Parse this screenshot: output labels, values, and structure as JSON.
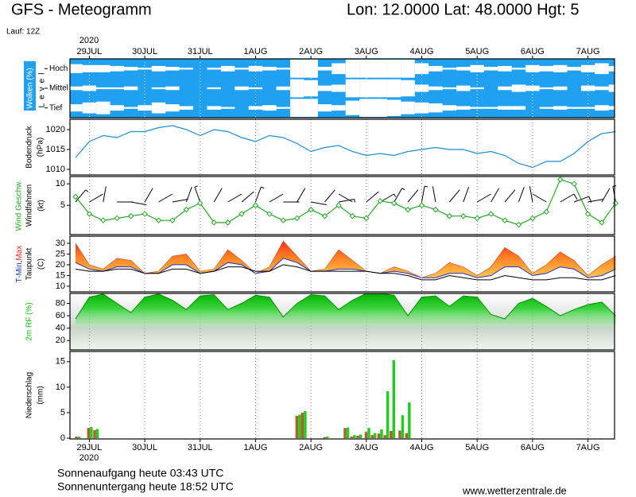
{
  "chart_data": {
    "type": "meteogram",
    "title": "GFS - Meteogramm",
    "location": "Lon: 12.0000 Lat: 48.0000 Hgt: 5",
    "run": "Lauf: 12Z",
    "year": "2020",
    "xlim": [
      -0.35,
      9.48
    ],
    "xticks": [
      {
        "value": 0,
        "label": "29JUL"
      },
      {
        "value": 1,
        "label": "30JUL"
      },
      {
        "value": 2,
        "label": "31JUL"
      },
      {
        "value": 3,
        "label": "1AUG"
      },
      {
        "value": 4,
        "label": "2AUG"
      },
      {
        "value": 5,
        "label": "3AUG"
      },
      {
        "value": 6,
        "label": "4AUG"
      },
      {
        "value": 7,
        "label": "5AUG"
      },
      {
        "value": 8,
        "label": "6AUG"
      },
      {
        "value": 9,
        "label": "7AUG"
      }
    ],
    "x": [
      -0.25,
      0,
      0.25,
      0.5,
      0.75,
      1,
      1.25,
      1.5,
      1.75,
      2,
      2.25,
      2.5,
      2.75,
      3,
      3.25,
      3.5,
      3.75,
      4,
      4.25,
      4.5,
      4.75,
      5,
      5.25,
      5.5,
      5.75,
      6,
      6.25,
      6.5,
      6.75,
      7,
      7.25,
      7.5,
      7.75,
      8,
      8.25,
      8.5,
      8.75,
      9,
      9.25,
      9.5
    ],
    "panels": [
      {
        "type": "cloud",
        "ylabel": "Wolken (%)",
        "ylabel2": "Level",
        "ylim": [
          0,
          100
        ],
        "color": "#20a0f0",
        "series": [
          {
            "name": "Hoch",
            "color": "#ffffff",
            "values": [
              50,
              40,
              40,
              30,
              20,
              10,
              30,
              20,
              10,
              0,
              10,
              30,
              10,
              30,
              20,
              10,
              100,
              100,
              20,
              60,
              100,
              100,
              100,
              100,
              100,
              60,
              30,
              10,
              20,
              40,
              20,
              30,
              10,
              40,
              30,
              40,
              20,
              40,
              60,
              30
            ]
          },
          {
            "name": "Mittel",
            "color": "#ffffff",
            "values": [
              20,
              30,
              10,
              10,
              20,
              0,
              10,
              20,
              0,
              0,
              10,
              0,
              20,
              10,
              0,
              20,
              100,
              90,
              30,
              40,
              100,
              100,
              100,
              100,
              90,
              40,
              20,
              10,
              30,
              10,
              0,
              20,
              40,
              30,
              10,
              20,
              0,
              30,
              20,
              40
            ]
          },
          {
            "name": "Tief",
            "color": "#ffffff",
            "values": [
              40,
              60,
              70,
              30,
              10,
              30,
              60,
              40,
              20,
              0,
              20,
              10,
              0,
              20,
              30,
              10,
              100,
              100,
              40,
              30,
              80,
              100,
              100,
              90,
              70,
              60,
              50,
              30,
              20,
              10,
              10,
              20,
              20,
              0,
              10,
              20,
              10,
              10,
              30,
              20
            ]
          }
        ]
      },
      {
        "type": "line",
        "ylabel": "Bodendruck",
        "ylabel2": "(hPa)",
        "ylim": [
          1008.6,
          1022.6
        ],
        "yticks": [
          1010,
          1015,
          1020
        ],
        "series": [
          {
            "color": "#1b8fd8",
            "values": [
              1013,
              1017,
              1018.5,
              1018,
              1019.5,
              1019.5,
              1020.5,
              1021,
              1020,
              1018.5,
              1020,
              1019.5,
              1018,
              1017,
              1018.5,
              1018,
              1016.5,
              1014.5,
              1015.5,
              1016,
              1014.5,
              1013.5,
              1014,
              1013.5,
              1014.5,
              1015,
              1015.5,
              1015,
              1015,
              1014,
              1014.5,
              1013.5,
              1011.5,
              1010.5,
              1012,
              1012,
              1014,
              1017,
              1019,
              1019.5
            ]
          }
        ]
      },
      {
        "type": "wind",
        "ylabel": "(kt)",
        "ylim": [
          -1.8,
          11.7
        ],
        "yticks": [
          5,
          10
        ],
        "series": [
          {
            "name": "Wind Geschw.",
            "color": "#22aa22",
            "values": [
              7,
              3,
              1.5,
              2,
              2.5,
              3,
              1.5,
              1.5,
              4,
              5.5,
              1,
              1,
              3,
              5,
              3,
              1.5,
              2,
              4,
              2.5,
              5,
              2.5,
              2,
              6,
              5.5,
              4,
              5,
              4,
              2.5,
              2.5,
              2,
              3,
              1.5,
              0.5,
              2,
              3.5,
              11,
              10,
              3,
              1,
              5.5
            ]
          }
        ],
        "barbs": {
          "name": "Windfahnen",
          "color": "#000000",
          "values": [
            40,
            60,
            10,
            90,
            100,
            30,
            60,
            80,
            20,
            340,
            30,
            60,
            50,
            20,
            60,
            90,
            30,
            100,
            40,
            80,
            300,
            50,
            60,
            30,
            40,
            10,
            350,
            40,
            20,
            60,
            30,
            40,
            20,
            350,
            300,
            60,
            70,
            80,
            30,
            350
          ]
        }
      },
      {
        "type": "temperature",
        "ylabel": "(C)",
        "name_separator": ",",
        "ylim": [
          7.4,
          33.3
        ],
        "yticks": [
          10,
          15,
          20,
          25,
          30
        ],
        "series": [
          {
            "name": "T-Min",
            "color": "#2030c0",
            "values": [
              21,
              18,
              17,
              19,
              19,
              16,
              16,
              20,
              20,
              16,
              17,
              21,
              20,
              16,
              17,
              23,
              21,
              17,
              17,
              18,
              18,
              17,
              16,
              17,
              16,
              14,
              14,
              16,
              16,
              14,
              15,
              19,
              19,
              15,
              16,
              19,
              18,
              14,
              15,
              18
            ]
          },
          {
            "name": "Max",
            "color": "#ff2020",
            "values": [
              30,
              20,
              18,
              23,
              22,
              16,
              17,
              24,
              25,
              17,
              18,
              27,
              22,
              16,
              19,
              31,
              24,
              17,
              18,
              27,
              22,
              17,
              16,
              19,
              17,
              14,
              16,
              21,
              19,
              15,
              19,
              28,
              24,
              16,
              20,
              26,
              22,
              15,
              20,
              24
            ]
          },
          {
            "name": "Taupunkt",
            "color": "#000000",
            "values": [
              18,
              17,
              17,
              18,
              18,
              16,
              16,
              18,
              18,
              16,
              17,
              19,
              19,
              17,
              17,
              20,
              19,
              17,
              17,
              17,
              17,
              17,
              16,
              16,
              15,
              13,
              13,
              15,
              14,
              13,
              13,
              15,
              14,
              13,
              13,
              14,
              14,
              13,
              13,
              15
            ]
          }
        ]
      },
      {
        "type": "area",
        "ylabel": "2m RF (%)",
        "ylim": [
          5,
          96
        ],
        "yticks": [
          20,
          40,
          60,
          80
        ],
        "series": [
          {
            "color": "#10c010",
            "values": [
              55,
              90,
              95,
              80,
              65,
              90,
              95,
              85,
              70,
              92,
              94,
              70,
              80,
              93,
              90,
              58,
              80,
              94,
              92,
              70,
              85,
              96,
              96,
              93,
              60,
              90,
              92,
              75,
              92,
              90,
              62,
              55,
              80,
              88,
              75,
              60,
              70,
              78,
              82,
              60
            ]
          }
        ]
      },
      {
        "type": "bar",
        "ylabel": "Niederschlag",
        "ylabel2": "(mm)",
        "ylim": [
          -0.15,
          17
        ],
        "yticks": [
          0,
          5,
          10,
          15
        ],
        "x": [
          -0.21,
          0.01,
          0.12,
          3.77,
          3.87,
          4.27,
          4.64,
          4.76,
          4.87,
          5.02,
          5.13,
          5.25,
          5.36,
          5.47,
          5.63,
          5.75
        ],
        "series": [
          {
            "color": "#b0602a",
            "values": [
              0.3,
              2.0,
              1.6,
              4.4,
              5.0,
              0.2,
              2.0,
              0.3,
              0.5,
              1.2,
              0.6,
              0.9,
              0.6,
              1.4,
              1.5,
              1.0
            ]
          },
          {
            "color": "#22cc22",
            "values": [
              0.3,
              2.2,
              1.8,
              4.6,
              5.3,
              0.3,
              2.1,
              0.6,
              0.7,
              2.0,
              1.0,
              1.7,
              9.2,
              15.3,
              4.5,
              7.0
            ]
          }
        ]
      }
    ],
    "footer": {
      "sunrise": "Sonnenaufgang heute 03:43 UTC",
      "sunset": "Sonnenuntergang heute 18:52 UTC",
      "source": "www.wetterzentrale.de"
    }
  }
}
